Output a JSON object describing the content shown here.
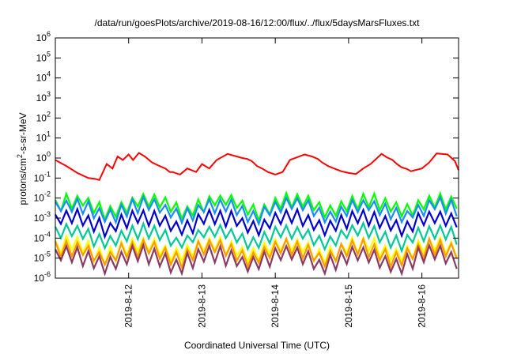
{
  "chart_data": {
    "type": "line",
    "title": "/data/run/goesPlots/archive/2019-08-16/12:00/flux/../flux/5daysMarsFluxes.txt",
    "xlabel": "Coordinated Universal Time (UTC)",
    "ylabel": "protons/cm2-s-sr-MeV",
    "ylabel_parts": {
      "base": "protons/cm",
      "sup": "2",
      "rest": "-s-sr-MeV"
    },
    "xlim": [
      0,
      5.5
    ],
    "ylim": [
      1e-06,
      1000000.0
    ],
    "yscale": "log",
    "x_ticks": [
      {
        "value": 1,
        "label": "2019-8-12"
      },
      {
        "value": 2,
        "label": "2019-8-13"
      },
      {
        "value": 3,
        "label": "2019-8-14"
      },
      {
        "value": 4,
        "label": "2019-8-15"
      },
      {
        "value": 5,
        "label": "2019-8-16"
      }
    ],
    "y_ticks": [
      {
        "value": 1e-06,
        "base": "10",
        "exp": "-6"
      },
      {
        "value": 1e-05,
        "base": "10",
        "exp": "-5"
      },
      {
        "value": 0.0001,
        "base": "10",
        "exp": "-4"
      },
      {
        "value": 0.001,
        "base": "10",
        "exp": "-3"
      },
      {
        "value": 0.01,
        "base": "10",
        "exp": "-2"
      },
      {
        "value": 0.1,
        "base": "10",
        "exp": "-1"
      },
      {
        "value": 1,
        "base": "10",
        "exp": "0"
      },
      {
        "value": 10,
        "base": "10",
        "exp": "1"
      },
      {
        "value": 100,
        "base": "10",
        "exp": "2"
      },
      {
        "value": 1000,
        "base": "10",
        "exp": "3"
      },
      {
        "value": 10000,
        "base": "10",
        "exp": "4"
      },
      {
        "value": 100000,
        "base": "10",
        "exp": "5"
      },
      {
        "value": 1000000,
        "base": "10",
        "exp": "6"
      }
    ],
    "x_note": "x values are days after 2019-08-11 00:00 UTC",
    "grid": false,
    "legend": "none",
    "series": [
      {
        "color": "#ff0000",
        "x": [
          0,
          0.15,
          0.3,
          0.45,
          0.55,
          0.6,
          0.7,
          0.78,
          0.85,
          0.92,
          1.0,
          1.06,
          1.14,
          1.22,
          1.32,
          1.42,
          1.5,
          1.56,
          1.6,
          1.7,
          1.8,
          1.92,
          2.0,
          2.1,
          2.2,
          2.35,
          2.55,
          2.62,
          2.68,
          2.75,
          2.82,
          2.9,
          3.0,
          3.1,
          3.2,
          3.4,
          3.5,
          3.58,
          3.64,
          3.72,
          3.8,
          3.9,
          4.0,
          4.1,
          4.2,
          4.3,
          4.45,
          4.52,
          4.6,
          4.66,
          4.72,
          4.8,
          4.85,
          5.0,
          5.1,
          5.2,
          5.35,
          5.45,
          5.5
        ],
        "y": [
          0.8,
          0.4,
          0.18,
          0.1,
          0.09,
          0.08,
          0.5,
          0.3,
          1.2,
          0.8,
          1.5,
          0.8,
          1.8,
          1.2,
          0.6,
          0.4,
          0.3,
          0.2,
          0.2,
          0.15,
          0.3,
          0.2,
          0.5,
          0.3,
          0.8,
          1.6,
          1.0,
          0.9,
          0.7,
          0.4,
          0.3,
          0.2,
          0.15,
          0.2,
          0.8,
          1.5,
          1.2,
          0.9,
          0.6,
          0.4,
          0.3,
          0.22,
          0.18,
          0.16,
          0.3,
          0.5,
          1.6,
          1.1,
          0.8,
          0.5,
          0.35,
          0.28,
          0.22,
          0.3,
          0.6,
          1.7,
          1.5,
          0.7,
          0.25
        ]
      },
      {
        "color": "#00ff00",
        "base": 0.005,
        "amp": 1.0,
        "phase": 0.0
      },
      {
        "color": "#1a8cff",
        "base": 0.003,
        "amp": 1.0,
        "phase": 0.02
      },
      {
        "color": "#0000cc",
        "base": 0.0008,
        "amp": 1.1,
        "phase": 0.04
      },
      {
        "color": "#00c896",
        "base": 0.00015,
        "amp": 1.0,
        "phase": 0.06
      },
      {
        "color": "#ffff00",
        "base": 3.5e-05,
        "amp": 1.2,
        "phase": 0.08
      },
      {
        "color": "#ff9900",
        "base": 2.5e-05,
        "amp": 1.2,
        "phase": 0.09
      },
      {
        "color": "#8b3a62",
        "base": 1.2e-05,
        "amp": 1.3,
        "phase": 0.1
      }
    ]
  }
}
